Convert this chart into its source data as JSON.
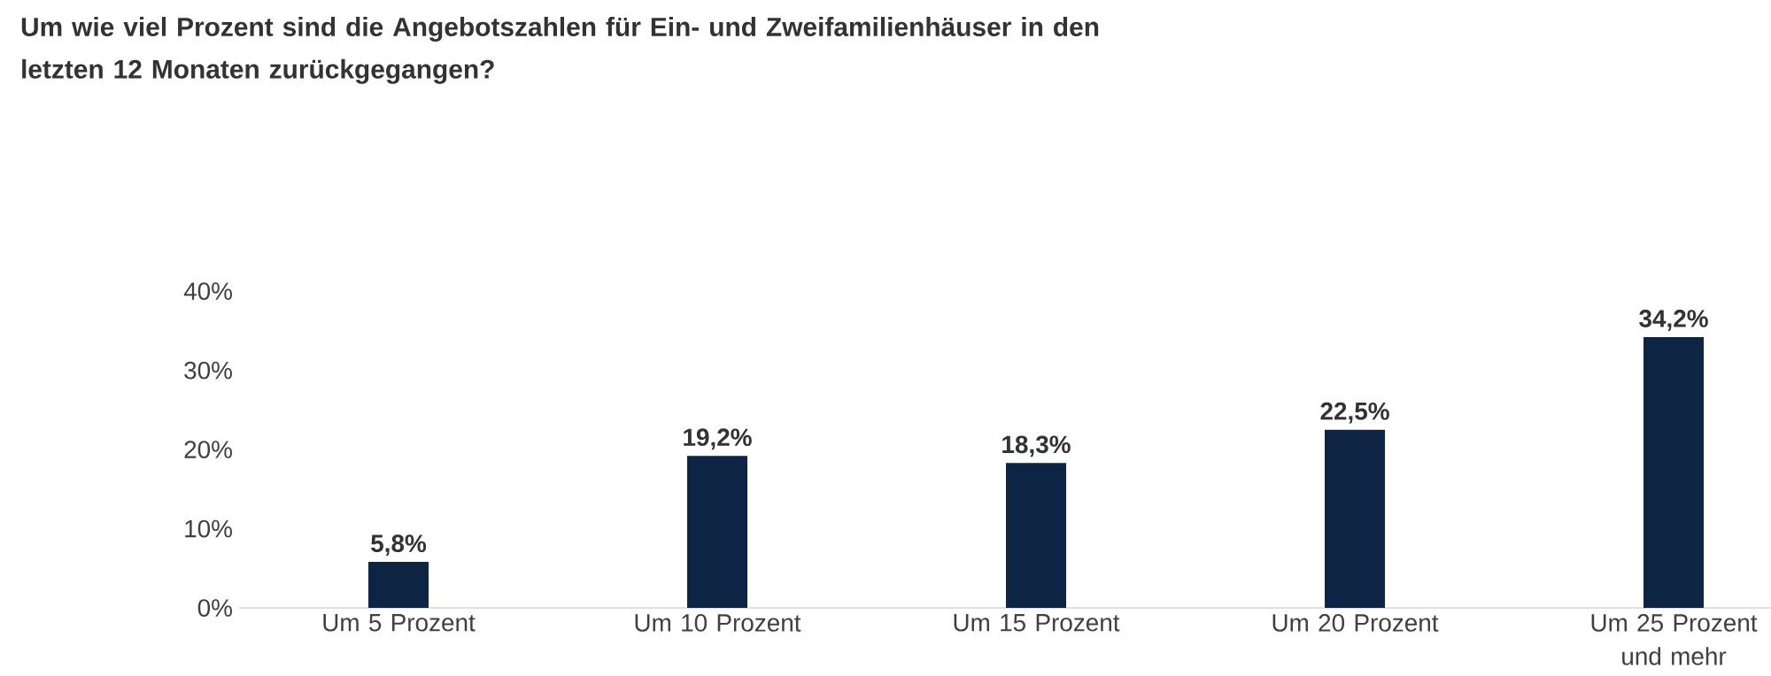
{
  "chart_data": {
    "type": "bar",
    "title": "Um wie viel Prozent sind die Angebotszahlen für Ein- und Zweifamilienhäuser in den letzten 12 Monaten zurückgegangen?",
    "categories": [
      "Um 5 Prozent",
      "Um 10 Prozent",
      "Um 15 Prozent",
      "Um 20 Prozent",
      "Um 25 Prozent und mehr"
    ],
    "values": [
      5.8,
      19.2,
      18.3,
      22.5,
      34.2
    ],
    "value_labels": [
      "5,8%",
      "19,2%",
      "18,3%",
      "22,5%",
      "34,2%"
    ],
    "color": "#0e2444",
    "ylim": [
      0,
      40
    ],
    "yticks": [
      {
        "value": 0,
        "label": "0%"
      },
      {
        "value": 10,
        "label": "10%"
      },
      {
        "value": 20,
        "label": "20%"
      },
      {
        "value": 30,
        "label": "30%"
      },
      {
        "value": 40,
        "label": "40%"
      }
    ],
    "grid": false
  }
}
